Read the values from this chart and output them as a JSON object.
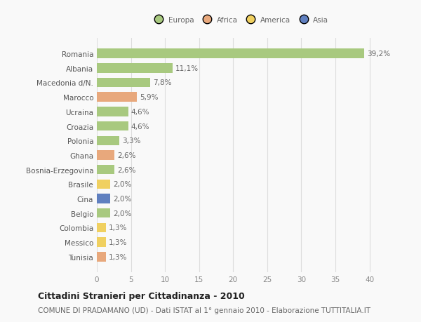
{
  "categories": [
    "Romania",
    "Albania",
    "Macedonia d/N.",
    "Marocco",
    "Ucraina",
    "Croazia",
    "Polonia",
    "Ghana",
    "Bosnia-Erzegovina",
    "Brasile",
    "Cina",
    "Belgio",
    "Colombia",
    "Messico",
    "Tunisia"
  ],
  "values": [
    39.2,
    11.1,
    7.8,
    5.9,
    4.6,
    4.6,
    3.3,
    2.6,
    2.6,
    2.0,
    2.0,
    2.0,
    1.3,
    1.3,
    1.3
  ],
  "labels": [
    "39,2%",
    "11,1%",
    "7,8%",
    "5,9%",
    "4,6%",
    "4,6%",
    "3,3%",
    "2,6%",
    "2,6%",
    "2,0%",
    "2,0%",
    "2,0%",
    "1,3%",
    "1,3%",
    "1,3%"
  ],
  "colors": [
    "#a8c97f",
    "#a8c97f",
    "#a8c97f",
    "#e8a87c",
    "#a8c97f",
    "#a8c97f",
    "#a8c97f",
    "#e8a87c",
    "#a8c97f",
    "#f0d060",
    "#6080c0",
    "#a8c97f",
    "#f0d060",
    "#f0d060",
    "#e8a87c"
  ],
  "legend": [
    {
      "label": "Europa",
      "color": "#a8c97f"
    },
    {
      "label": "Africa",
      "color": "#e8a87c"
    },
    {
      "label": "America",
      "color": "#f0d060"
    },
    {
      "label": "Asia",
      "color": "#6080c0"
    }
  ],
  "xlim": [
    0,
    42
  ],
  "xticks": [
    0,
    5,
    10,
    15,
    20,
    25,
    30,
    35,
    40
  ],
  "title": "Cittadini Stranieri per Cittadinanza - 2010",
  "subtitle": "COMUNE DI PRADAMANO (UD) - Dati ISTAT al 1° gennaio 2010 - Elaborazione TUTTITALIA.IT",
  "background_color": "#f9f9f9",
  "grid_color": "#dddddd",
  "bar_height": 0.65,
  "title_fontsize": 9,
  "subtitle_fontsize": 7.5,
  "label_fontsize": 7.5,
  "tick_fontsize": 7.5
}
